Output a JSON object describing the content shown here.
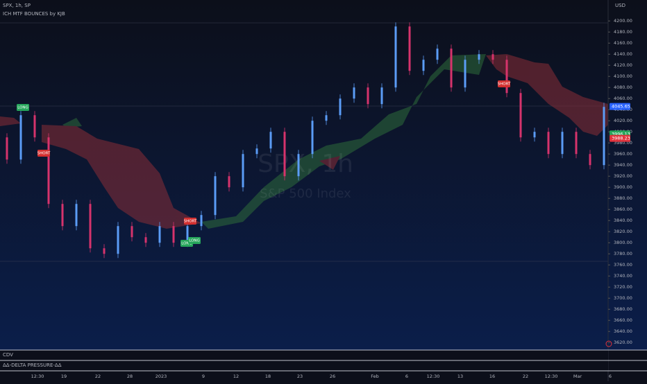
{
  "header": {
    "symbol": "SPX, 1h, SP",
    "indicator": "ICH MTF BOUNCES by KJB",
    "currency": "USD"
  },
  "watermark": {
    "title": "SPX, 1h",
    "subtitle": "S&P 500 Index"
  },
  "price_axis": {
    "ylim": [
      4204,
      3614
    ],
    "ticks": [
      {
        "value": 4200,
        "label": "4200.00"
      },
      {
        "value": 4180,
        "label": "4180.00"
      },
      {
        "value": 4160,
        "label": "4160.00"
      },
      {
        "value": 4140,
        "label": "4140.00"
      },
      {
        "value": 4120,
        "label": "4120.00"
      },
      {
        "value": 4100,
        "label": "4100.00"
      },
      {
        "value": 4080,
        "label": "4080.00"
      },
      {
        "value": 4060,
        "label": "4060.00"
      },
      {
        "value": 4040,
        "label": "4040.00"
      },
      {
        "value": 4020,
        "label": "4020.00"
      },
      {
        "value": 4000,
        "label": "4000.00"
      },
      {
        "value": 3980,
        "label": "3980.00"
      },
      {
        "value": 3960,
        "label": "3960.00"
      },
      {
        "value": 3940,
        "label": "3940.00"
      },
      {
        "value": 3920,
        "label": "3920.00"
      },
      {
        "value": 3900,
        "label": "3900.00"
      },
      {
        "value": 3880,
        "label": "3880.00"
      },
      {
        "value": 3860,
        "label": "3860.00"
      },
      {
        "value": 3840,
        "label": "3840.00"
      },
      {
        "value": 3820,
        "label": "3820.00"
      },
      {
        "value": 3800,
        "label": "3800.00"
      },
      {
        "value": 3780,
        "label": "3780.00"
      },
      {
        "value": 3760,
        "label": "3760.00"
      },
      {
        "value": 3740,
        "label": "3740.00"
      },
      {
        "value": 3720,
        "label": "3720.00"
      },
      {
        "value": 3700,
        "label": "3700.00"
      },
      {
        "value": 3680,
        "label": "3680.00"
      },
      {
        "value": 3660,
        "label": "3660.00"
      },
      {
        "value": 3640,
        "label": "3640.00"
      },
      {
        "value": 3620,
        "label": "3620.00"
      }
    ]
  },
  "badges": [
    {
      "value": 4045.65,
      "label": "4045.65",
      "color": "#2962ff"
    },
    {
      "value": 3996.13,
      "label": "3996.13",
      "color": "#26a65b"
    },
    {
      "value": 3988.23,
      "label": "3988.23",
      "color": "#e0323c"
    }
  ],
  "closes": [
    3990,
    3950,
    4030,
    3990,
    3870,
    3830,
    3870,
    3790,
    3780,
    3830,
    3810,
    3800,
    3830,
    3800,
    3830,
    3850,
    3920,
    3900,
    3960,
    3970,
    4000,
    3920,
    3960,
    4020,
    4030,
    4060,
    4080,
    4050,
    4080,
    4190,
    4110,
    4130,
    4150,
    4080,
    4130,
    4140,
    4130,
    4070,
    3990,
    4000,
    3960,
    4000,
    3960,
    3940,
    4045
  ],
  "signals": [
    "LONG",
    "SHORT",
    "SHORT",
    "LONG",
    "LONG",
    "SHORT"
  ],
  "time_axis": [
    "12:30",
    "19",
    "22",
    "28",
    "2023",
    "9",
    "12",
    "18",
    "23",
    "26",
    "Feb",
    "6",
    "12:30",
    "13",
    "16",
    "22",
    "12:30",
    "Mar",
    "6"
  ],
  "panes": [
    "CDV",
    "ΔΔ-DELTA PRESSURE-ΔΔ"
  ]
}
